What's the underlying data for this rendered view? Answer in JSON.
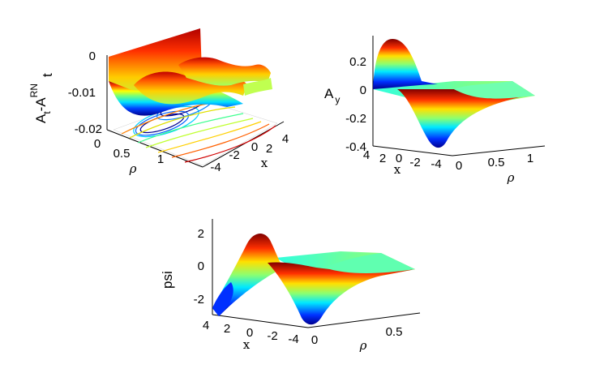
{
  "chart_data": [
    {
      "type": "surface",
      "zlabel": {
        "main": "A",
        "sub1": "t",
        "mid": "-A",
        "sup": "RN",
        "sub2": "t"
      },
      "xlabel": "ρ",
      "ylabel": "x",
      "xticks": [
        "0",
        "0.5",
        "1"
      ],
      "yticks": [
        "-4",
        "-2",
        "0",
        "2",
        "4"
      ],
      "zticks": [
        "0",
        "-0.01",
        "-0.02"
      ],
      "xlim": [
        0,
        1.5
      ],
      "ylim": [
        -4,
        4
      ],
      "zlim": [
        -0.02,
        0
      ],
      "contour_projection": true,
      "colormap": "jet"
    },
    {
      "type": "surface",
      "zlabel": {
        "main": "A",
        "sub1": "y"
      },
      "xlabel": "ρ",
      "ylabel": "x",
      "xticks": [
        "0",
        "0.5",
        "1"
      ],
      "yticks": [
        "4",
        "2",
        "0",
        "-2",
        "-4"
      ],
      "zticks": [
        "0.2",
        "0",
        "-0.2",
        "-0.4"
      ],
      "xlim": [
        0,
        1.5
      ],
      "ylim": [
        -4,
        4
      ],
      "zlim": [
        -0.4,
        0.3
      ],
      "colormap": "jet"
    },
    {
      "type": "surface",
      "zlabel": {
        "main": "psi"
      },
      "xlabel": "ρ",
      "ylabel": "x",
      "xticks": [
        "0",
        "0.5"
      ],
      "yticks": [
        "4",
        "2",
        "0",
        "-2",
        "-4"
      ],
      "zticks": [
        "2",
        "0",
        "-2"
      ],
      "xlim": [
        0,
        0.8
      ],
      "ylim": [
        -4,
        4
      ],
      "zlim": [
        -3,
        3
      ],
      "colormap": "jet"
    }
  ],
  "colors": {
    "jet_blue": "#00008f",
    "jet_cyan": "#00ffff",
    "jet_yellow": "#ffff00",
    "jet_red": "#ff0000",
    "jet_darkred": "#800000"
  }
}
